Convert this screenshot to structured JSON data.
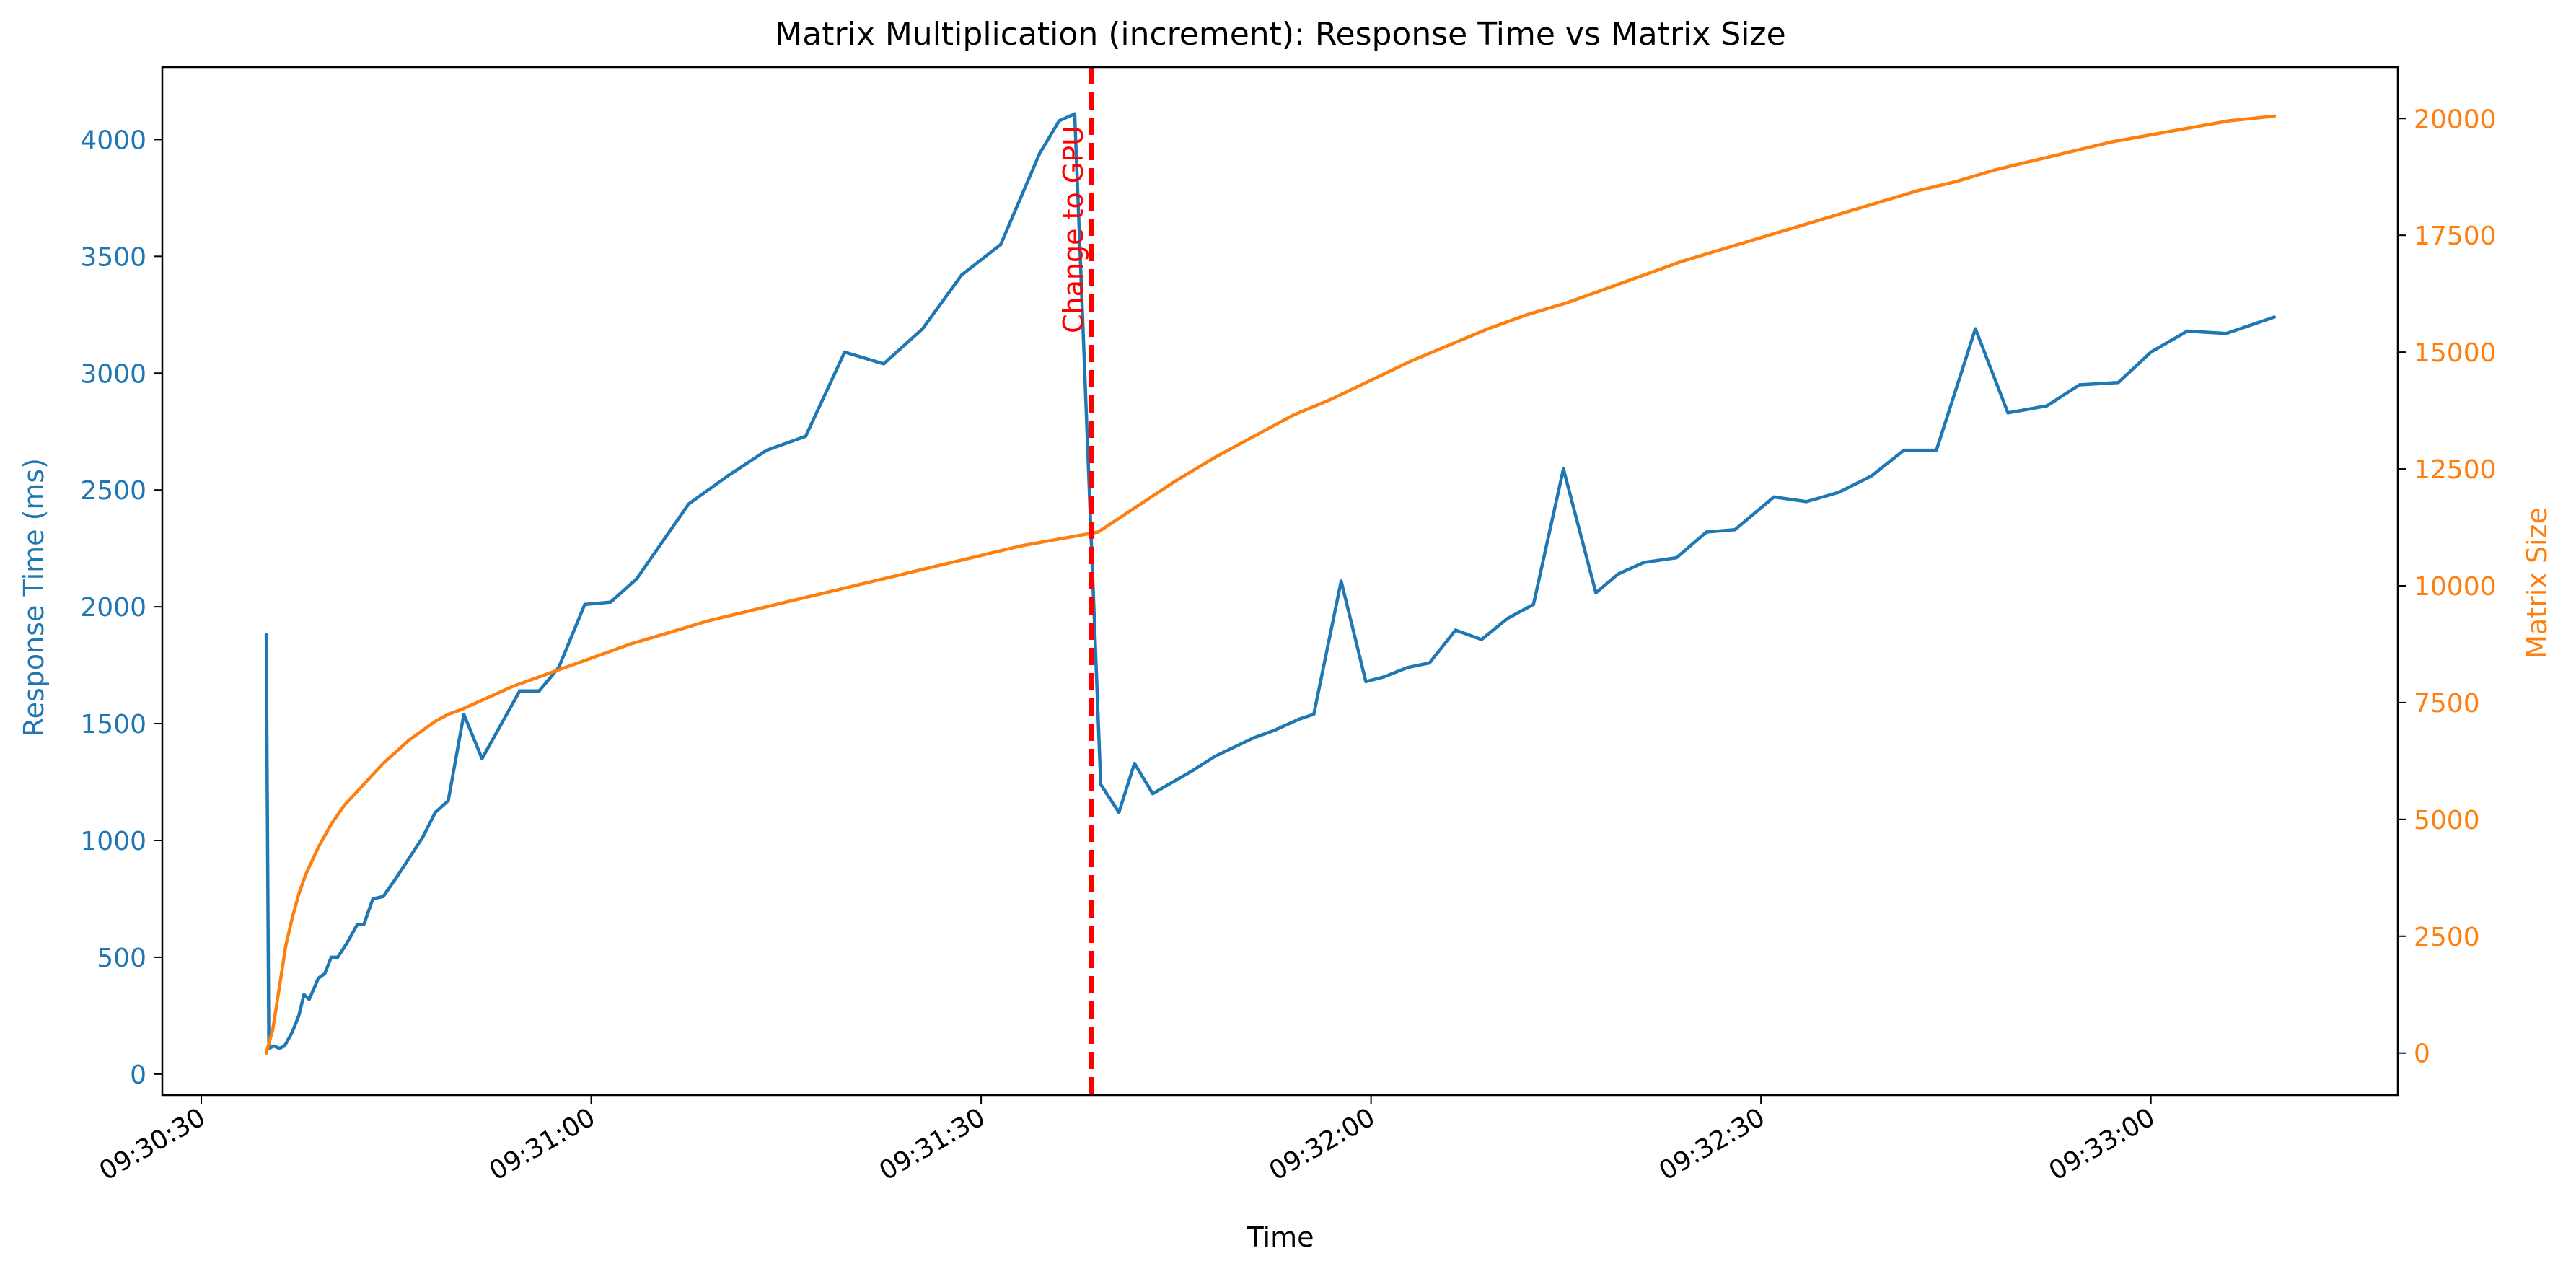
{
  "chart_data": {
    "type": "line",
    "title": "Matrix Multiplication (increment): Response Time vs Matrix Size",
    "xlabel": "Time",
    "ylabel_left": "Response Time (ms)",
    "ylabel_right": "Matrix Size",
    "x_ticks": [
      "09:30:30",
      "09:31:00",
      "09:31:30",
      "09:32:00",
      "09:32:30",
      "09:33:00"
    ],
    "xlim": [
      "09:30:27",
      "09:33:19"
    ],
    "ylim_left": [
      -90,
      4310
    ],
    "ylim_right": [
      -900,
      21100
    ],
    "yticks_left": [
      0,
      500,
      1000,
      1500,
      2000,
      2500,
      3000,
      3500,
      4000
    ],
    "yticks_right": [
      0,
      2500,
      5000,
      7500,
      10000,
      12500,
      15000,
      17500,
      20000
    ],
    "grid": false,
    "colors": {
      "response": "#1f77b4",
      "size": "#ff7f0e",
      "annotation": "#ff0000"
    },
    "annotation": {
      "label": "Change to GPU",
      "x": "09:31:38.5"
    },
    "series": [
      {
        "name": "Response Time (ms)",
        "axis": "left",
        "points": [
          [
            "09:30:35.0",
            1880
          ],
          [
            "09:30:35.2",
            110
          ],
          [
            "09:30:35.6",
            120
          ],
          [
            "09:30:36.0",
            110
          ],
          [
            "09:30:36.4",
            120
          ],
          [
            "09:30:37.0",
            180
          ],
          [
            "09:30:37.5",
            250
          ],
          [
            "09:30:37.9",
            340
          ],
          [
            "09:30:38.3",
            320
          ],
          [
            "09:30:38.7",
            370
          ],
          [
            "09:30:39.0",
            410
          ],
          [
            "09:30:39.5",
            430
          ],
          [
            "09:30:40.0",
            500
          ],
          [
            "09:30:40.5",
            500
          ],
          [
            "09:30:41.2",
            560
          ],
          [
            "09:30:42.0",
            640
          ],
          [
            "09:30:42.5",
            640
          ],
          [
            "09:30:43.2",
            750
          ],
          [
            "09:30:44.0",
            760
          ],
          [
            "09:30:45.0",
            840
          ],
          [
            "09:30:47.0",
            1010
          ],
          [
            "09:30:48.0",
            1120
          ],
          [
            "09:30:49.0",
            1170
          ],
          [
            "09:30:50.2",
            1540
          ],
          [
            "09:30:51.6",
            1350
          ],
          [
            "09:30:54.5",
            1640
          ],
          [
            "09:30:56.0",
            1640
          ],
          [
            "09:30:57.5",
            1740
          ],
          [
            "09:30:59.5",
            2010
          ],
          [
            "09:31:01.5",
            2020
          ],
          [
            "09:31:03.5",
            2120
          ],
          [
            "09:31:07.5",
            2440
          ],
          [
            "09:31:10.5",
            2560
          ],
          [
            "09:31:13.5",
            2670
          ],
          [
            "09:31:16.5",
            2730
          ],
          [
            "09:31:19.5",
            3090
          ],
          [
            "09:31:22.5",
            3040
          ],
          [
            "09:31:25.5",
            3190
          ],
          [
            "09:31:28.5",
            3420
          ],
          [
            "09:31:31.5",
            3550
          ],
          [
            "09:31:34.5",
            3940
          ],
          [
            "09:31:36.0",
            4080
          ],
          [
            "09:31:37.2",
            4110
          ],
          [
            "09:31:39.2",
            1240
          ],
          [
            "09:31:40.6",
            1120
          ],
          [
            "09:31:41.8",
            1330
          ],
          [
            "09:31:43.2",
            1200
          ],
          [
            "09:31:46.3",
            1300
          ],
          [
            "09:31:48.0",
            1360
          ],
          [
            "09:31:51.0",
            1440
          ],
          [
            "09:31:52.5",
            1470
          ],
          [
            "09:31:54.5",
            1520
          ],
          [
            "09:31:55.6",
            1540
          ],
          [
            "09:31:57.7",
            2110
          ],
          [
            "09:31:59.6",
            1680
          ],
          [
            "09:32:01.0",
            1700
          ],
          [
            "09:32:02.8",
            1740
          ],
          [
            "09:32:04.5",
            1760
          ],
          [
            "09:32:06.5",
            1900
          ],
          [
            "09:32:08.5",
            1860
          ],
          [
            "09:32:10.5",
            1950
          ],
          [
            "09:32:12.5",
            2010
          ],
          [
            "09:32:14.8",
            2590
          ],
          [
            "09:32:17.3",
            2060
          ],
          [
            "09:32:19.0",
            2140
          ],
          [
            "09:32:21.0",
            2190
          ],
          [
            "09:32:23.5",
            2210
          ],
          [
            "09:32:25.8",
            2320
          ],
          [
            "09:32:28.0",
            2330
          ],
          [
            "09:32:31.0",
            2470
          ],
          [
            "09:32:33.5",
            2450
          ],
          [
            "09:32:36.0",
            2490
          ],
          [
            "09:32:38.5",
            2560
          ],
          [
            "09:32:41.0",
            2670
          ],
          [
            "09:32:43.5",
            2670
          ],
          [
            "09:32:46.5",
            3190
          ],
          [
            "09:32:49.0",
            2830
          ],
          [
            "09:32:52.0",
            2860
          ],
          [
            "09:32:54.5",
            2950
          ],
          [
            "09:32:57.5",
            2960
          ],
          [
            "09:33:00.0",
            3090
          ],
          [
            "09:33:02.8",
            3180
          ],
          [
            "09:33:05.8",
            3170
          ],
          [
            "09:33:09.5",
            3240
          ]
        ]
      },
      {
        "name": "Matrix Size",
        "axis": "right",
        "points": [
          [
            "09:30:35.0",
            0
          ],
          [
            "09:30:35.5",
            500
          ],
          [
            "09:30:36.0",
            1400
          ],
          [
            "09:30:36.5",
            2300
          ],
          [
            "09:30:37.0",
            2900
          ],
          [
            "09:30:37.5",
            3400
          ],
          [
            "09:30:38.0",
            3800
          ],
          [
            "09:30:39.0",
            4400
          ],
          [
            "09:30:40.0",
            4900
          ],
          [
            "09:30:41.0",
            5300
          ],
          [
            "09:30:42.0",
            5600
          ],
          [
            "09:30:43.0",
            5900
          ],
          [
            "09:30:44.0",
            6200
          ],
          [
            "09:30:45.0",
            6450
          ],
          [
            "09:30:46.0",
            6700
          ],
          [
            "09:30:47.0",
            6900
          ],
          [
            "09:30:48.0",
            7100
          ],
          [
            "09:30:49.0",
            7250
          ],
          [
            "09:30:50.0",
            7350
          ],
          [
            "09:30:52.0",
            7600
          ],
          [
            "09:30:54.0",
            7850
          ],
          [
            "09:30:56.0",
            8050
          ],
          [
            "09:30:58.0",
            8250
          ],
          [
            "09:31:00.0",
            8450
          ],
          [
            "09:31:03.0",
            8750
          ],
          [
            "09:31:06.0",
            9000
          ],
          [
            "09:31:09.0",
            9250
          ],
          [
            "09:31:12.0",
            9450
          ],
          [
            "09:31:15.0",
            9650
          ],
          [
            "09:31:18.0",
            9850
          ],
          [
            "09:31:21.0",
            10050
          ],
          [
            "09:31:24.0",
            10250
          ],
          [
            "09:31:27.0",
            10450
          ],
          [
            "09:31:30.0",
            10650
          ],
          [
            "09:31:33.0",
            10850
          ],
          [
            "09:31:36.0",
            11000
          ],
          [
            "09:31:39.0",
            11150
          ],
          [
            "09:31:42.0",
            11700
          ],
          [
            "09:31:45.0",
            12250
          ],
          [
            "09:31:48.0",
            12750
          ],
          [
            "09:31:51.0",
            13200
          ],
          [
            "09:31:54.0",
            13650
          ],
          [
            "09:31:57.0",
            14000
          ],
          [
            "09:32:00.0",
            14400
          ],
          [
            "09:32:03.0",
            14800
          ],
          [
            "09:32:06.0",
            15150
          ],
          [
            "09:32:09.0",
            15500
          ],
          [
            "09:32:12.0",
            15800
          ],
          [
            "09:32:15.0",
            16050
          ],
          [
            "09:32:18.0",
            16350
          ],
          [
            "09:32:21.0",
            16650
          ],
          [
            "09:32:24.0",
            16950
          ],
          [
            "09:32:27.0",
            17200
          ],
          [
            "09:32:30.0",
            17450
          ],
          [
            "09:32:33.0",
            17700
          ],
          [
            "09:32:36.0",
            17950
          ],
          [
            "09:32:39.0",
            18200
          ],
          [
            "09:32:42.0",
            18450
          ],
          [
            "09:32:45.0",
            18650
          ],
          [
            "09:32:48.0",
            18900
          ],
          [
            "09:32:51.0",
            19100
          ],
          [
            "09:32:54.0",
            19300
          ],
          [
            "09:32:57.0",
            19500
          ],
          [
            "09:33:00.0",
            19650
          ],
          [
            "09:33:03.0",
            19800
          ],
          [
            "09:33:06.0",
            19950
          ],
          [
            "09:33:09.5",
            20050
          ]
        ]
      }
    ]
  }
}
